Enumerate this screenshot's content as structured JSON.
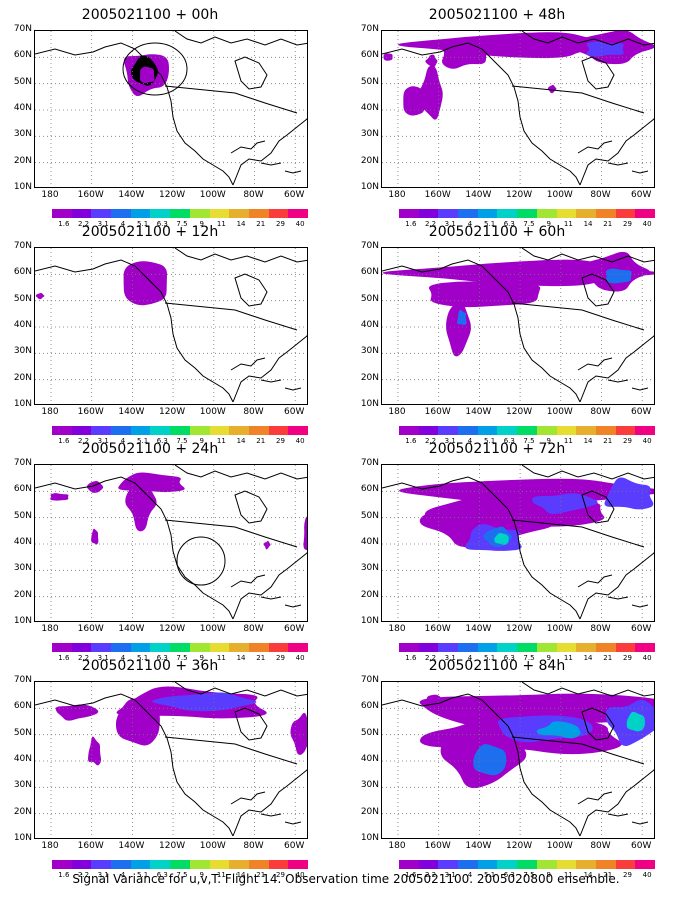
{
  "panels": [
    {
      "title": "2005021100 + 00h"
    },
    {
      "title": "2005021100 + 48h"
    },
    {
      "title": "2005021100 + 12h"
    },
    {
      "title": "2005021100 + 60h"
    },
    {
      "title": "2005021100 + 24h"
    },
    {
      "title": "2005021100 + 72h"
    },
    {
      "title": "2005021100 + 36h"
    },
    {
      "title": "2005021100 + 84h"
    }
  ],
  "lat_labels": [
    "70N",
    "60N",
    "50N",
    "40N",
    "30N",
    "20N",
    "10N"
  ],
  "lon_labels": [
    "180",
    "160W",
    "140W",
    "120W",
    "100W",
    "80W",
    "60W"
  ],
  "legend_labels": [
    "1.6",
    "2.2",
    "3.1",
    "4",
    "5.1",
    "6.3",
    "7.5",
    "9",
    "11",
    "14",
    "21",
    "29",
    "40"
  ],
  "legend_colors": [
    "#a000c8",
    "#8200dc",
    "#5a3cff",
    "#1e6ef0",
    "#00a0e6",
    "#00d2c8",
    "#00dc64",
    "#a0e632",
    "#e6dc32",
    "#e6af2d",
    "#f08228",
    "#fa3c3c",
    "#f00082"
  ],
  "caption": "Signal Variance for u,v,T. Flight 14. Observation time 2005021100. 2005020800 ensemble."
}
